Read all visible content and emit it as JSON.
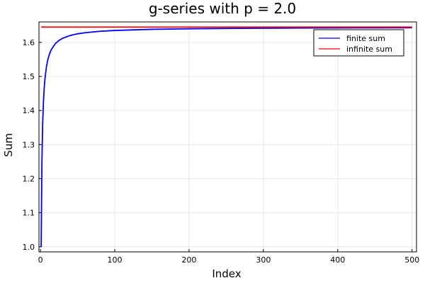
{
  "chart_data": {
    "type": "line",
    "title": "g-series with p = 2.0",
    "xlabel": "Index",
    "ylabel": "Sum",
    "xlim": [
      -2,
      506
    ],
    "ylim": [
      0.985,
      1.66
    ],
    "xticks": [
      0,
      100,
      200,
      300,
      400,
      500
    ],
    "yticks": [
      1.0,
      1.1,
      1.2,
      1.3,
      1.4,
      1.5,
      1.6
    ],
    "ytick_labels": [
      "1.0",
      "1.1",
      "1.2",
      "1.3",
      "1.4",
      "1.5",
      "1.6"
    ],
    "grid": true,
    "legend_placement": "top-right",
    "series": [
      {
        "name": "finite sum",
        "color": "#0000ff",
        "x": [
          1,
          2,
          3,
          4,
          5,
          6,
          8,
          10,
          12,
          15,
          20,
          25,
          30,
          40,
          50,
          60,
          80,
          100,
          150,
          200,
          250,
          300,
          350,
          400,
          450,
          500
        ],
        "y": [
          1.0,
          1.25,
          1.3611,
          1.4236,
          1.4636,
          1.4914,
          1.5274,
          1.5498,
          1.565,
          1.5804,
          1.5962,
          1.6058,
          1.6122,
          1.6202,
          1.6251,
          1.6283,
          1.6325,
          1.635,
          1.6383,
          1.6399,
          1.6409,
          1.6416,
          1.6421,
          1.6424,
          1.6427,
          1.6429
        ]
      },
      {
        "name": "infinite sum",
        "color": "#ff0000",
        "x": [
          1,
          500
        ],
        "y": [
          1.6449,
          1.6449
        ]
      }
    ]
  }
}
